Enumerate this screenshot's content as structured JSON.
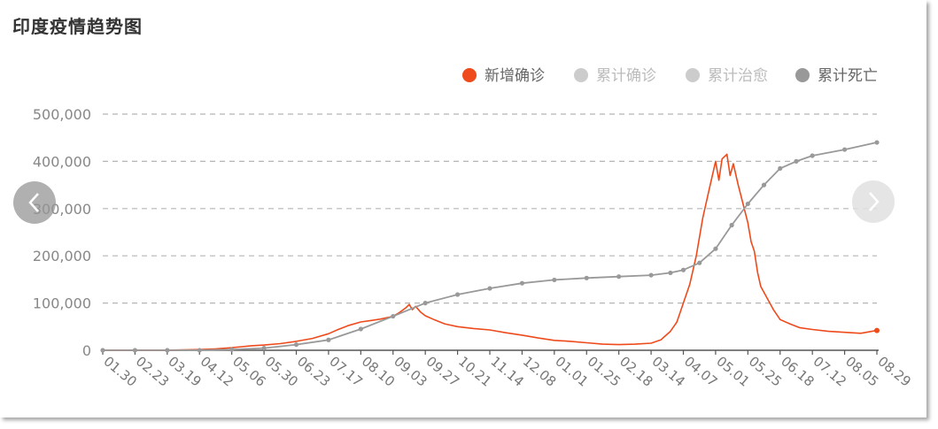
{
  "title": "印度疫情趋势图",
  "legend": [
    {
      "name": "新增确诊",
      "color": "#ee4a1c",
      "active": true
    },
    {
      "name": "累计确诊",
      "color": "#cccccc",
      "active": false
    },
    {
      "name": "累计治愈",
      "color": "#cccccc",
      "active": false
    },
    {
      "name": "累计死亡",
      "color": "#999999",
      "active": true
    }
  ],
  "nav": {
    "prev_icon": "chevron-left-icon",
    "next_icon": "chevron-right-icon"
  },
  "chart_data": {
    "type": "line",
    "title": "印度疫情趋势图",
    "xlabel": "",
    "ylabel": "",
    "ylim": [
      0,
      500000
    ],
    "yticks": [
      "0",
      "100,000",
      "200,000",
      "300,000",
      "400,000",
      "500,000"
    ],
    "xticks": [
      "01.30",
      "02.23",
      "03.19",
      "04.12",
      "05.06",
      "05.30",
      "06.23",
      "07.17",
      "08.10",
      "09.03",
      "09.27",
      "10.21",
      "11.14",
      "12.08",
      "01.01",
      "01.25",
      "02.18",
      "03.14",
      "04.07",
      "05.01",
      "05.25",
      "06.18",
      "07.12",
      "08.05",
      "08.29"
    ],
    "grid": true,
    "legend_position": "top-right",
    "series": [
      {
        "name": "新增确诊",
        "color": "#ee4a1c",
        "points": [
          [
            0,
            0
          ],
          [
            0.5,
            0
          ],
          [
            1,
            0
          ],
          [
            1.5,
            0
          ],
          [
            2,
            200
          ],
          [
            2.5,
            800
          ],
          [
            3,
            1500
          ],
          [
            3.5,
            3000
          ],
          [
            4,
            5500
          ],
          [
            4.3,
            7500
          ],
          [
            4.6,
            9500
          ],
          [
            5,
            11000
          ],
          [
            5.5,
            14000
          ],
          [
            6,
            19000
          ],
          [
            6.5,
            25000
          ],
          [
            7,
            35000
          ],
          [
            7.3,
            44000
          ],
          [
            7.6,
            52000
          ],
          [
            8,
            60000
          ],
          [
            8.3,
            63000
          ],
          [
            8.6,
            66000
          ],
          [
            9,
            72000
          ],
          [
            9.2,
            80000
          ],
          [
            9.4,
            90000
          ],
          [
            9.5,
            97000
          ],
          [
            9.6,
            86000
          ],
          [
            9.7,
            93000
          ],
          [
            9.85,
            81000
          ],
          [
            10,
            73000
          ],
          [
            10.3,
            64000
          ],
          [
            10.6,
            56000
          ],
          [
            11,
            50000
          ],
          [
            11.5,
            46000
          ],
          [
            12,
            43000
          ],
          [
            12.5,
            37000
          ],
          [
            13,
            32000
          ],
          [
            13.5,
            26000
          ],
          [
            14,
            21000
          ],
          [
            14.5,
            19000
          ],
          [
            15,
            16000
          ],
          [
            15.5,
            13000
          ],
          [
            16,
            12000
          ],
          [
            16.5,
            13000
          ],
          [
            17,
            15000
          ],
          [
            17.3,
            22000
          ],
          [
            17.6,
            40000
          ],
          [
            17.8,
            60000
          ],
          [
            18,
            100000
          ],
          [
            18.2,
            140000
          ],
          [
            18.4,
            200000
          ],
          [
            18.6,
            280000
          ],
          [
            18.8,
            340000
          ],
          [
            19,
            400000
          ],
          [
            19.1,
            360000
          ],
          [
            19.2,
            405000
          ],
          [
            19.35,
            415000
          ],
          [
            19.45,
            370000
          ],
          [
            19.55,
            395000
          ],
          [
            19.7,
            350000
          ],
          [
            19.85,
            310000
          ],
          [
            20,
            270000
          ],
          [
            20.1,
            230000
          ],
          [
            20.2,
            210000
          ],
          [
            20.3,
            165000
          ],
          [
            20.4,
            135000
          ],
          [
            20.6,
            110000
          ],
          [
            20.8,
            85000
          ],
          [
            21,
            65000
          ],
          [
            21.3,
            56000
          ],
          [
            21.6,
            48000
          ],
          [
            22,
            44000
          ],
          [
            22.5,
            40000
          ],
          [
            23,
            38000
          ],
          [
            23.5,
            36000
          ],
          [
            24,
            42000
          ]
        ]
      },
      {
        "name": "累计死亡",
        "color": "#999999",
        "markers": true,
        "points": [
          [
            0,
            0
          ],
          [
            1,
            0
          ],
          [
            2,
            0
          ],
          [
            3,
            100
          ],
          [
            4,
            1500
          ],
          [
            5,
            4500
          ],
          [
            6,
            12000
          ],
          [
            7,
            22000
          ],
          [
            8,
            45000
          ],
          [
            9,
            72000
          ],
          [
            10,
            100000
          ],
          [
            11,
            118000
          ],
          [
            12,
            131000
          ],
          [
            13,
            142000
          ],
          [
            14,
            149000
          ],
          [
            15,
            153000
          ],
          [
            16,
            156000
          ],
          [
            17,
            159000
          ],
          [
            17.6,
            164000
          ],
          [
            18,
            170000
          ],
          [
            18.5,
            185000
          ],
          [
            19,
            215000
          ],
          [
            19.5,
            265000
          ],
          [
            20,
            310000
          ],
          [
            20.5,
            350000
          ],
          [
            21,
            385000
          ],
          [
            21.5,
            400000
          ],
          [
            22,
            412000
          ],
          [
            23,
            425000
          ],
          [
            24,
            440000
          ]
        ]
      }
    ]
  }
}
